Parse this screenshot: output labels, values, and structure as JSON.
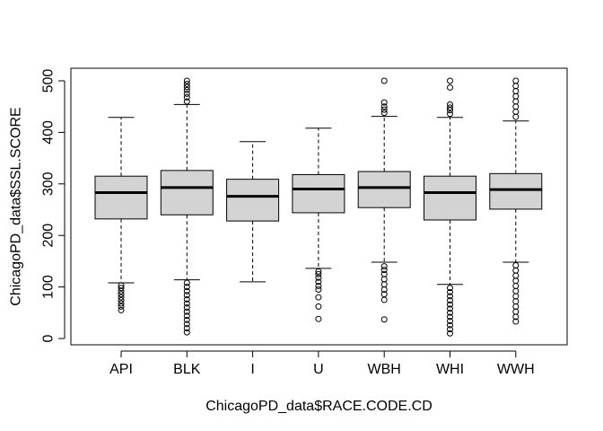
{
  "chart_data": {
    "type": "boxplot",
    "xlabel": "ChicagoPD_data$RACE.CODE.CD",
    "ylabel": "ChicagoPD_data$SSL.SCORE",
    "ylim": [
      0,
      500
    ],
    "y_ticks": [
      0,
      100,
      200,
      300,
      400,
      500
    ],
    "grid": false,
    "box_color": "#d3d3d3",
    "categories": [
      "API",
      "BLK",
      "I",
      "U",
      "WBH",
      "WHI",
      "WWH"
    ],
    "boxes": [
      {
        "category": "API",
        "whisker_low": 108,
        "q1": 232,
        "median": 283,
        "q3": 315,
        "whisker_high": 429,
        "outliers": [
          55,
          62,
          68,
          74,
          80,
          86,
          92,
          98,
          103
        ]
      },
      {
        "category": "BLK",
        "whisker_low": 114,
        "q1": 240,
        "median": 293,
        "q3": 326,
        "whisker_high": 454,
        "outliers": [
          12,
          20,
          28,
          36,
          44,
          52,
          60,
          68,
          76,
          84,
          92,
          100,
          108,
          460,
          468,
          475,
          482,
          488,
          494,
          500
        ]
      },
      {
        "category": "I",
        "whisker_low": 110,
        "q1": 228,
        "median": 276,
        "q3": 309,
        "whisker_high": 382,
        "outliers": []
      },
      {
        "category": "U",
        "whisker_low": 136,
        "q1": 244,
        "median": 290,
        "q3": 318,
        "whisker_high": 408,
        "outliers": [
          38,
          62,
          80,
          95,
          102,
          110,
          118,
          125,
          130
        ]
      },
      {
        "category": "WBH",
        "whisker_low": 148,
        "q1": 254,
        "median": 293,
        "q3": 324,
        "whisker_high": 431,
        "outliers": [
          37,
          75,
          86,
          95,
          105,
          115,
          125,
          133,
          140,
          438,
          444,
          450,
          458,
          500
        ]
      },
      {
        "category": "WHI",
        "whisker_low": 105,
        "q1": 230,
        "median": 283,
        "q3": 315,
        "whisker_high": 429,
        "outliers": [
          10,
          18,
          26,
          34,
          42,
          50,
          58,
          66,
          74,
          82,
          90,
          98,
          436,
          443,
          448,
          454,
          487,
          500
        ]
      },
      {
        "category": "WWH",
        "whisker_low": 148,
        "q1": 251,
        "median": 289,
        "q3": 320,
        "whisker_high": 422,
        "outliers": [
          33,
          42,
          52,
          62,
          72,
          82,
          92,
          102,
          112,
          122,
          132,
          142,
          430,
          440,
          450,
          460,
          470,
          480,
          490,
          500
        ]
      }
    ]
  }
}
